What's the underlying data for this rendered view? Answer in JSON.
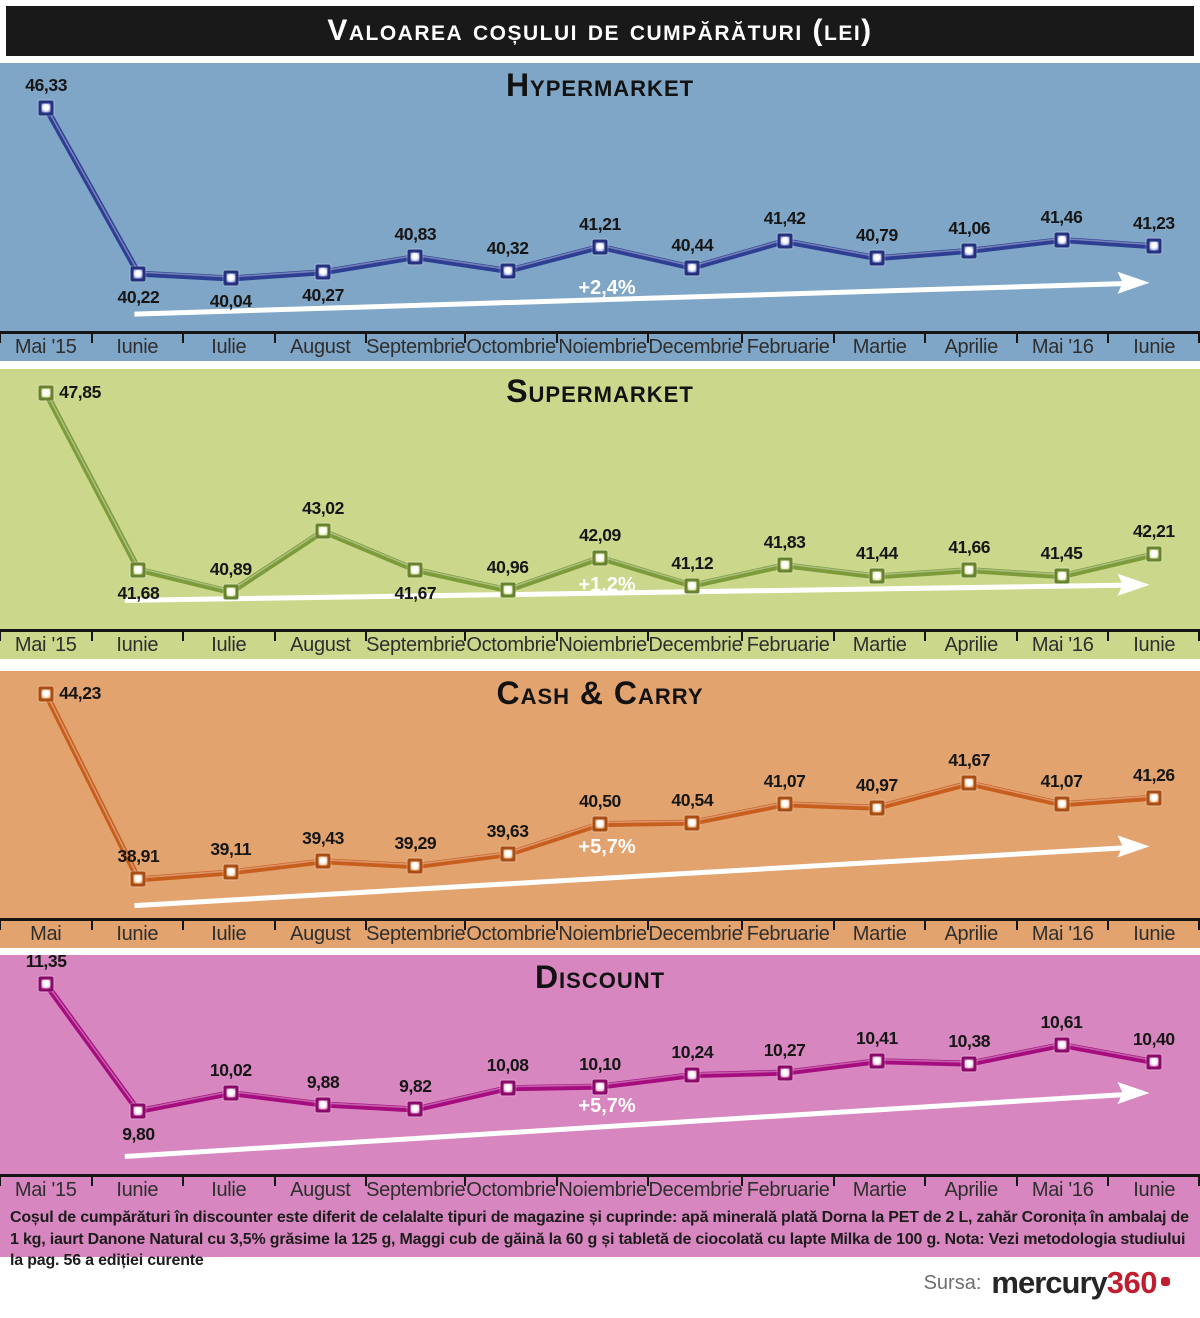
{
  "title": "Valoarea coșului de cumpărături (lei)",
  "footnote": "Coșul de cumpărături în discounter este diferit de celalalte tipuri de magazine și cuprinde: apă minerală plată Dorna la PET de 2 L, zahăr Coronița în ambalaj de 1 kg, iaurt Danone Natural cu 3,5% grăsime la 125 g, Maggi cub de găină la 60 g și tabletă de ciocolată cu lapte Milka de 100 g. Nota: Vezi metodologia studiului la pag. 56 a ediției curente",
  "source": {
    "label": "Sursa:",
    "brand": "mercury",
    "brand_suffix": "360"
  },
  "chart_data": [
    {
      "type": "line",
      "title": "Hypermarket",
      "categories": [
        "Mai '15",
        "Iunie",
        "Iulie",
        "August",
        "Septembrie",
        "Octombrie",
        "Noiembrie",
        "Decembrie",
        "Februarie",
        "Martie",
        "Aprilie",
        "Mai '16",
        "Iunie"
      ],
      "values": [
        46.33,
        40.22,
        40.04,
        40.27,
        40.83,
        40.32,
        41.21,
        40.44,
        41.42,
        40.79,
        41.06,
        41.46,
        41.23
      ],
      "growth_label": "+2,4%",
      "ylim": [
        38.1,
        48.0
      ],
      "label_pos": [
        "above",
        "below",
        "below",
        "below",
        "above",
        "above",
        "above",
        "above",
        "above",
        "above",
        "above",
        "above",
        "above"
      ],
      "legend": "none",
      "grid": false,
      "colors": {
        "bg": "#7FA6C6",
        "line": "#2D3E93",
        "line_dark": "#25317D",
        "marker_mid": "#9AA6DE"
      }
    },
    {
      "type": "line",
      "title": "Supermarket",
      "categories": [
        "Mai '15",
        "Iunie",
        "Iulie",
        "August",
        "Septembrie",
        "Octombrie",
        "Noiembrie",
        "Decembrie",
        "Februarie",
        "Martie",
        "Aprilie",
        "Mai '16",
        "Iunie"
      ],
      "values": [
        47.85,
        41.68,
        40.89,
        43.02,
        41.67,
        40.96,
        42.09,
        41.12,
        41.83,
        41.44,
        41.66,
        41.45,
        42.21
      ],
      "growth_label": "+1,2%",
      "ylim": [
        39.6,
        48.7
      ],
      "label_pos": [
        "right",
        "below",
        "above",
        "above",
        "below",
        "above",
        "above",
        "above",
        "above",
        "above",
        "above",
        "above",
        "above"
      ],
      "legend": "none",
      "grid": false,
      "colors": {
        "bg": "#CBD88C",
        "line": "#7D9B3B",
        "line_dark": "#69822F",
        "marker_mid": "#DCE6AC"
      }
    },
    {
      "type": "line",
      "title": "Cash & Carry",
      "categories": [
        "Mai",
        "Iunie",
        "Iulie",
        "August",
        "Septembrie",
        "Octombrie",
        "Noiembrie",
        "Decembrie",
        "Februarie",
        "Martie",
        "Aprilie",
        "Mai '16",
        "Iunie"
      ],
      "values": [
        44.23,
        38.91,
        39.11,
        39.43,
        39.29,
        39.63,
        40.5,
        40.54,
        41.07,
        40.97,
        41.67,
        41.07,
        41.26
      ],
      "growth_label": "+5,7%",
      "ylim": [
        37.8,
        44.9
      ],
      "label_pos": [
        "right",
        "above",
        "above",
        "above",
        "above",
        "above",
        "above",
        "above",
        "above",
        "above",
        "above",
        "above",
        "above"
      ],
      "legend": "none",
      "grid": false,
      "colors": {
        "bg": "#E2A36E",
        "line": "#C85E1D",
        "line_dark": "#A84E15",
        "marker_mid": "#EDBE92"
      }
    },
    {
      "type": "line",
      "title": "Discount",
      "categories": [
        "Mai '15",
        "Iunie",
        "Iulie",
        "August",
        "Septembrie",
        "Octombrie",
        "Noiembrie",
        "Decembrie",
        "Februarie",
        "Martie",
        "Aprilie",
        "Mai '16",
        "Iunie"
      ],
      "values": [
        11.35,
        9.8,
        10.02,
        9.88,
        9.82,
        10.08,
        10.1,
        10.24,
        10.27,
        10.41,
        10.38,
        10.61,
        10.4
      ],
      "growth_label": "+5,7%",
      "ylim": [
        9.03,
        11.71
      ],
      "label_pos": [
        "above",
        "below",
        "above",
        "above",
        "above",
        "above",
        "above",
        "above",
        "above",
        "above",
        "above",
        "above",
        "above"
      ],
      "legend": "none",
      "grid": false,
      "colors": {
        "bg": "#D786BF",
        "line": "#A50C7E",
        "line_dark": "#8A0A69",
        "marker_mid": "#E3A6D2"
      }
    }
  ]
}
